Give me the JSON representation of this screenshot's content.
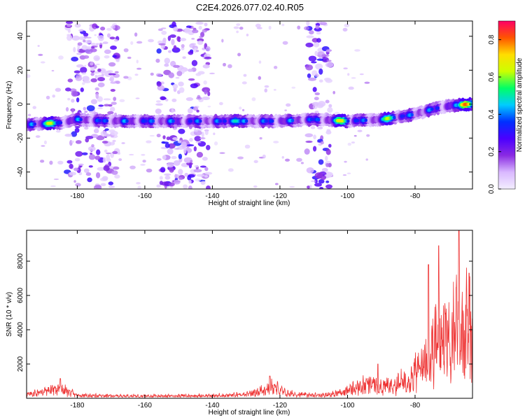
{
  "title": "C2E4.2026.077.02.40.R05",
  "chart_data": [
    {
      "type": "heatmap",
      "xlabel": "Height of straight line (km)",
      "ylabel": "Frequency (Hz)",
      "xlim": [
        -195,
        -63
      ],
      "ylim": [
        -50,
        49
      ],
      "xticks": [
        -180,
        -160,
        -140,
        -120,
        -100,
        -80
      ],
      "xtick_labels": [
        "-180",
        "-160",
        "-140",
        "-120",
        "-100",
        "-80"
      ],
      "yticks": [
        -40,
        -20,
        0,
        20,
        40
      ],
      "ytick_labels": [
        "-40",
        "-20",
        "0",
        "20",
        "40"
      ],
      "grid": false,
      "colorbar": {
        "label": "Normalized spectral amplitude",
        "range": [
          0,
          0.9
        ],
        "ticks": [
          0,
          0.2,
          0.4,
          0.6,
          0.8
        ],
        "tick_labels": [
          "0.0",
          "0.2",
          "0.4",
          "0.6",
          "0.8"
        ],
        "colors": [
          "#f3eeff",
          "#d9b8ff",
          "#8a2be2",
          "#4b00ff",
          "#0030ff",
          "#00ccff",
          "#00ff66",
          "#ccff00",
          "#ffdd00",
          "#ff5500",
          "#ff0066"
        ]
      },
      "ridge": {
        "description": "main spectral ridge",
        "points": [
          [
            -195,
            -12
          ],
          [
            -185,
            -11
          ],
          [
            -180,
            -9
          ],
          [
            -170,
            -10
          ],
          [
            -160,
            -10
          ],
          [
            -140,
            -10
          ],
          [
            -120,
            -10
          ],
          [
            -110,
            -9
          ],
          [
            -100,
            -10
          ],
          [
            -90,
            -9
          ],
          [
            -80,
            -6
          ],
          [
            -75,
            -3
          ],
          [
            -70,
            -1
          ],
          [
            -64,
            0
          ]
        ],
        "peaks": [
          [
            -188,
            -11,
            0.75
          ],
          [
            -133,
            -10,
            0.55
          ],
          [
            -102,
            -10,
            0.8
          ],
          [
            -88,
            -10,
            0.7
          ],
          [
            -65,
            0,
            0.9
          ]
        ]
      },
      "noise_bands": [
        [
          -183,
          -168
        ],
        [
          -156,
          -141
        ],
        [
          -112,
          -105
        ]
      ]
    },
    {
      "type": "line",
      "xlabel": "Height of straight line (km)",
      "ylabel": "SNR (10 * v/v)",
      "xlim": [
        -195,
        -63
      ],
      "ylim": [
        0,
        9800
      ],
      "xticks": [
        -180,
        -160,
        -140,
        -120,
        -100,
        -80
      ],
      "xtick_labels": [
        "-180",
        "-160",
        "-140",
        "-120",
        "-100",
        "-80"
      ],
      "yticks": [
        2000,
        4000,
        6000,
        8000
      ],
      "ytick_labels": [
        "2000",
        "4000",
        "6000",
        "8000"
      ],
      "grid": false,
      "color": "#ee3333",
      "envelope": {
        "x": [
          -195,
          -190,
          -186,
          -183,
          -180,
          -170,
          -160,
          -140,
          -130,
          -125,
          -122,
          -118,
          -110,
          -104,
          -100,
          -97,
          -93,
          -90,
          -86,
          -82,
          -78,
          -75,
          -72,
          -70,
          -68,
          -66,
          -64,
          -63
        ],
        "y": [
          300,
          600,
          850,
          600,
          250,
          200,
          200,
          220,
          300,
          700,
          1000,
          400,
          250,
          350,
          700,
          900,
          1300,
          1000,
          1100,
          1600,
          2800,
          4200,
          6000,
          5200,
          6500,
          5500,
          6300,
          6800
        ]
      },
      "spikes": [
        [
          -185,
          1150
        ],
        [
          -123,
          1300
        ],
        [
          -91,
          2000
        ],
        [
          -76,
          7800
        ],
        [
          -73,
          8900
        ],
        [
          -67,
          9800
        ],
        [
          -64,
          7300
        ]
      ]
    }
  ]
}
